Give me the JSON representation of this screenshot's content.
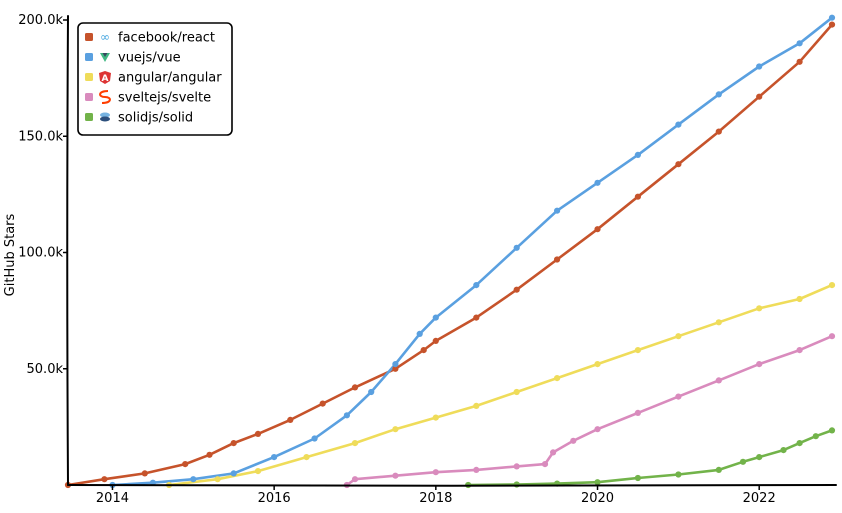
{
  "chart_data": {
    "type": "line",
    "title": "",
    "xlabel": "",
    "ylabel": "GitHub Stars",
    "xlim": [
      2013.45,
      2022.95
    ],
    "ylim": [
      0,
      200000
    ],
    "x_ticks": [
      {
        "value": 2014,
        "label": "2014"
      },
      {
        "value": 2016,
        "label": "2016"
      },
      {
        "value": 2018,
        "label": "2018"
      },
      {
        "value": 2020,
        "label": "2020"
      },
      {
        "value": 2022,
        "label": "2022"
      }
    ],
    "y_ticks": [
      {
        "value": 50000,
        "label": "50.0k"
      },
      {
        "value": 100000,
        "label": "100.0k"
      },
      {
        "value": 150000,
        "label": "150.0k"
      },
      {
        "value": 200000,
        "label": "200.0k"
      }
    ],
    "grid": false,
    "legend_position": "top-left",
    "series": [
      {
        "name": "facebook/react",
        "color": "#c6532b",
        "icon": "react-atom-icon",
        "points": [
          [
            2013.45,
            0
          ],
          [
            2013.9,
            2500
          ],
          [
            2014.4,
            5000
          ],
          [
            2014.9,
            9000
          ],
          [
            2015.2,
            13000
          ],
          [
            2015.5,
            18000
          ],
          [
            2015.8,
            22000
          ],
          [
            2016.2,
            28000
          ],
          [
            2016.6,
            35000
          ],
          [
            2017.0,
            42000
          ],
          [
            2017.5,
            50000
          ],
          [
            2017.85,
            58000
          ],
          [
            2018.0,
            62000
          ],
          [
            2018.5,
            72000
          ],
          [
            2019.0,
            84000
          ],
          [
            2019.5,
            97000
          ],
          [
            2020.0,
            110000
          ],
          [
            2020.5,
            124000
          ],
          [
            2021.0,
            138000
          ],
          [
            2021.5,
            152000
          ],
          [
            2022.0,
            167000
          ],
          [
            2022.5,
            182000
          ],
          [
            2022.9,
            198000
          ]
        ]
      },
      {
        "name": "vuejs/vue",
        "color": "#5aa0e0",
        "icon": "vue-logo-icon",
        "points": [
          [
            2014.0,
            0
          ],
          [
            2014.5,
            1000
          ],
          [
            2015.0,
            2500
          ],
          [
            2015.5,
            5000
          ],
          [
            2016.0,
            12000
          ],
          [
            2016.5,
            20000
          ],
          [
            2016.9,
            30000
          ],
          [
            2017.2,
            40000
          ],
          [
            2017.5,
            52000
          ],
          [
            2017.8,
            65000
          ],
          [
            2018.0,
            72000
          ],
          [
            2018.5,
            86000
          ],
          [
            2019.0,
            102000
          ],
          [
            2019.5,
            118000
          ],
          [
            2020.0,
            130000
          ],
          [
            2020.5,
            142000
          ],
          [
            2021.0,
            155000
          ],
          [
            2021.5,
            168000
          ],
          [
            2022.0,
            180000
          ],
          [
            2022.5,
            190000
          ],
          [
            2022.9,
            201000
          ]
        ]
      },
      {
        "name": "angular/angular",
        "color": "#efdc5a",
        "icon": "angular-shield-icon",
        "points": [
          [
            2014.7,
            0
          ],
          [
            2015.3,
            2500
          ],
          [
            2015.8,
            6000
          ],
          [
            2016.4,
            12000
          ],
          [
            2017.0,
            18000
          ],
          [
            2017.5,
            24000
          ],
          [
            2018.0,
            29000
          ],
          [
            2018.5,
            34000
          ],
          [
            2019.0,
            40000
          ],
          [
            2019.5,
            46000
          ],
          [
            2020.0,
            52000
          ],
          [
            2020.5,
            58000
          ],
          [
            2021.0,
            64000
          ],
          [
            2021.5,
            70000
          ],
          [
            2022.0,
            76000
          ],
          [
            2022.5,
            80000
          ],
          [
            2022.9,
            86000
          ]
        ]
      },
      {
        "name": "sveltejs/svelte",
        "color": "#d98bbd",
        "icon": "svelte-s-icon",
        "points": [
          [
            2016.9,
            0
          ],
          [
            2017.0,
            2500
          ],
          [
            2017.5,
            4000
          ],
          [
            2018.0,
            5500
          ],
          [
            2018.5,
            6500
          ],
          [
            2019.0,
            8000
          ],
          [
            2019.35,
            9000
          ],
          [
            2019.45,
            14000
          ],
          [
            2019.7,
            19000
          ],
          [
            2020.0,
            24000
          ],
          [
            2020.5,
            31000
          ],
          [
            2021.0,
            38000
          ],
          [
            2021.5,
            45000
          ],
          [
            2022.0,
            52000
          ],
          [
            2022.5,
            58000
          ],
          [
            2022.9,
            64000
          ]
        ]
      },
      {
        "name": "solidjs/solid",
        "color": "#72b34a",
        "icon": "solid-cube-icon",
        "points": [
          [
            2018.4,
            0
          ],
          [
            2019.0,
            200
          ],
          [
            2019.5,
            600
          ],
          [
            2020.0,
            1200
          ],
          [
            2020.5,
            3000
          ],
          [
            2021.0,
            4500
          ],
          [
            2021.5,
            6500
          ],
          [
            2021.8,
            10000
          ],
          [
            2022.0,
            12000
          ],
          [
            2022.3,
            15000
          ],
          [
            2022.5,
            18000
          ],
          [
            2022.7,
            21000
          ],
          [
            2022.9,
            23500
          ]
        ]
      }
    ]
  }
}
